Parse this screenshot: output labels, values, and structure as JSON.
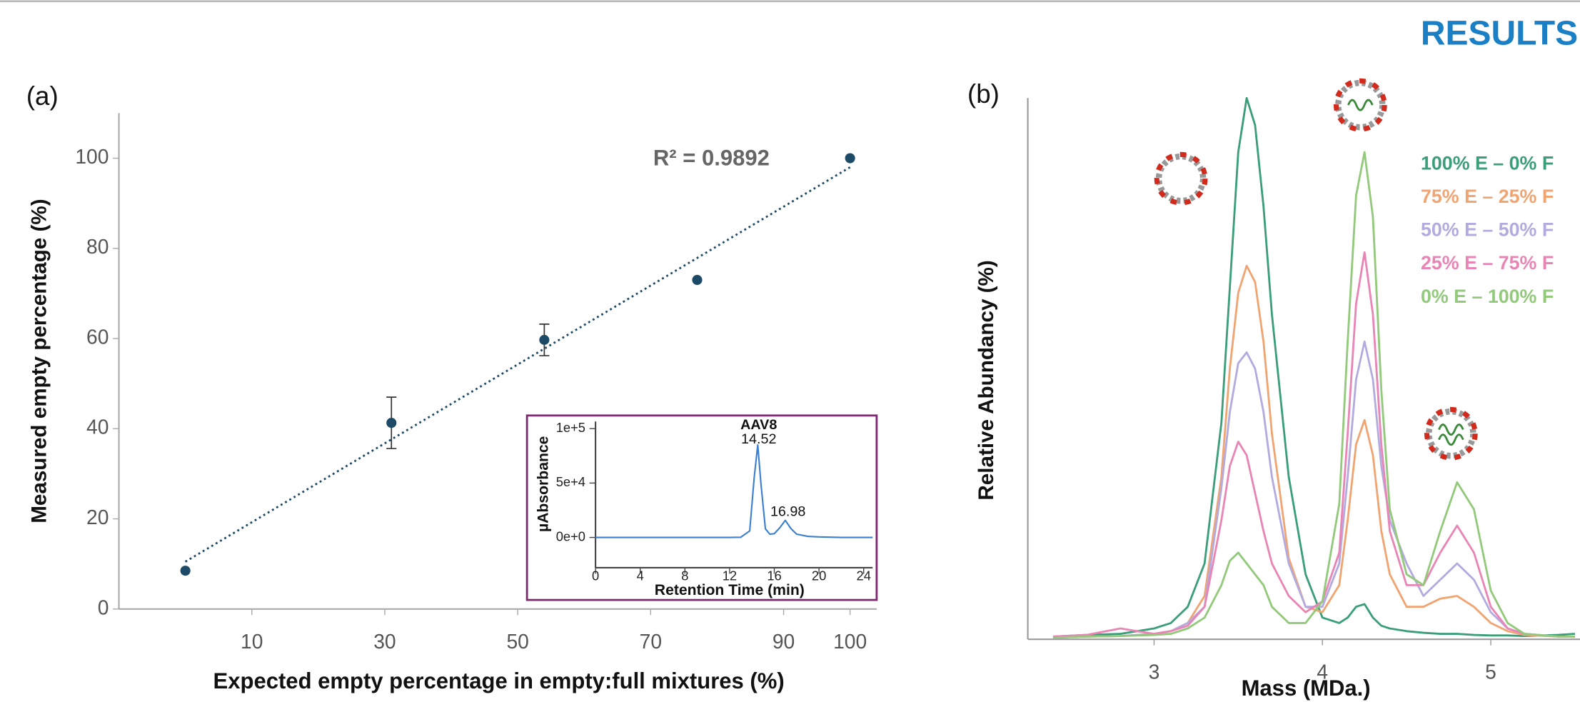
{
  "header": {
    "title": "RESULTS"
  },
  "chart_data": [
    {
      "type": "scatter",
      "panel_label": "(a)",
      "x_label": "Expected empty percentage in empty:full mixtures (%)",
      "y_label": "Measured empty  percentage (%)",
      "annotation": "R² = 0.9892",
      "x": [
        0,
        31,
        54,
        77,
        100
      ],
      "values": [
        8.5,
        41.3,
        59.7,
        73,
        100
      ],
      "errors": [
        null,
        5.7,
        3.5,
        null,
        null
      ],
      "color": "#1d4a66",
      "trendline": {
        "x": [
          0,
          100
        ],
        "values": [
          10.5,
          98
        ]
      },
      "xlim": [
        -10,
        104
      ],
      "xticks": [
        10,
        30,
        50,
        70,
        90,
        100
      ],
      "ylim": [
        0,
        110
      ],
      "yticks": [
        0,
        20,
        40,
        60,
        80,
        100
      ]
    },
    {
      "type": "line",
      "title": "AAV8",
      "x_label": "Retention Time (min)",
      "y_label": "µAbsorbance",
      "annotations": [
        "14.52",
        "16.98"
      ],
      "x": [
        0,
        2,
        4,
        6,
        8,
        10,
        12,
        13,
        13.8,
        14.2,
        14.52,
        14.8,
        15.2,
        15.6,
        16,
        16.5,
        16.98,
        17.5,
        18,
        19,
        20,
        22,
        24,
        24.8
      ],
      "series": [
        {
          "name": "AAV8",
          "color": "#3b7fd0",
          "values": [
            0,
            0,
            0,
            0,
            0,
            0,
            0,
            200,
            6000,
            55000,
            85000,
            50000,
            8000,
            3000,
            3500,
            9000,
            15700,
            8000,
            3000,
            1000,
            500,
            0,
            0,
            0
          ]
        }
      ],
      "xlim": [
        0,
        24.8
      ],
      "xticks": [
        0,
        4,
        8,
        12,
        16,
        20,
        24
      ],
      "ylim": [
        -27800,
        106500
      ],
      "yticks": [
        {
          "value": 0,
          "label": "0e+0"
        },
        {
          "value": 50000,
          "label": "5e+4"
        },
        {
          "value": 100000,
          "label": "1e+5"
        }
      ]
    },
    {
      "type": "line",
      "panel_label": "(b)",
      "x_label": "Mass (MDa.)",
      "y_label": "Relative Abundancy (%)",
      "x": [
        2.4,
        2.6,
        2.8,
        3.0,
        3.1,
        3.2,
        3.3,
        3.4,
        3.45,
        3.5,
        3.55,
        3.6,
        3.65,
        3.7,
        3.8,
        3.9,
        4.0,
        4.1,
        4.15,
        4.2,
        4.25,
        4.3,
        4.35,
        4.4,
        4.5,
        4.6,
        4.7,
        4.8,
        4.9,
        5.0,
        5.1,
        5.2,
        5.4,
        5.5
      ],
      "series": [
        {
          "name": "100% E – 0% F",
          "color": "#3a9e78",
          "values": [
            0.5,
            0.8,
            1,
            2,
            3,
            6,
            14,
            40,
            65,
            90,
            100,
            95,
            80,
            60,
            30,
            12,
            4,
            3,
            4,
            6,
            6.5,
            4,
            2.5,
            2,
            1.5,
            1.2,
            1,
            1,
            0.8,
            0.7,
            0.7,
            0.6,
            0.8,
            1
          ]
        },
        {
          "name": "75% E – 25% F",
          "color": "#f0a472",
          "values": [
            0.3,
            0.5,
            0.6,
            1,
            1.5,
            3,
            8,
            30,
            50,
            64,
            69,
            66,
            55,
            38,
            15,
            6,
            5,
            10,
            22,
            36,
            40.5,
            34,
            20,
            12,
            6,
            6,
            7.5,
            8,
            6,
            3,
            1.5,
            0.8,
            0.5,
            0.5
          ]
        },
        {
          "name": "50% E – 50% F",
          "color": "#b3abe0",
          "values": [
            0.3,
            0.5,
            0.6,
            1,
            1.5,
            3,
            6,
            28,
            42,
            51,
            53,
            50,
            42,
            30,
            14,
            6,
            6,
            14,
            30,
            48,
            55,
            48,
            32,
            22,
            14,
            8,
            11,
            14,
            11,
            5,
            2,
            1,
            0.5,
            0.5
          ]
        },
        {
          "name": "25% E – 75% F",
          "color": "#e985b5",
          "values": [
            0.5,
            0.8,
            2,
            1,
            1.5,
            2.5,
            6,
            22,
            32,
            36.5,
            34,
            27,
            20,
            14,
            8,
            5,
            7,
            16,
            38,
            62,
            71.5,
            60,
            36,
            20,
            10,
            10,
            16,
            21,
            16,
            6,
            2,
            1,
            0.5,
            0.5
          ]
        },
        {
          "name": "0% E – 100% F",
          "color": "#92c97a",
          "values": [
            0.3,
            0.5,
            0.6,
            0.8,
            1,
            2,
            4,
            10,
            14.5,
            16,
            14,
            12,
            10,
            6,
            3,
            3,
            7,
            25,
            55,
            82,
            90,
            78,
            46,
            24,
            12,
            10,
            20,
            29,
            24,
            9,
            3,
            1,
            0.5,
            0.5
          ]
        }
      ],
      "xlim": [
        2.25,
        5.53
      ],
      "xticks": [
        3,
        4,
        5
      ],
      "ylim": [
        0,
        100
      ]
    }
  ]
}
